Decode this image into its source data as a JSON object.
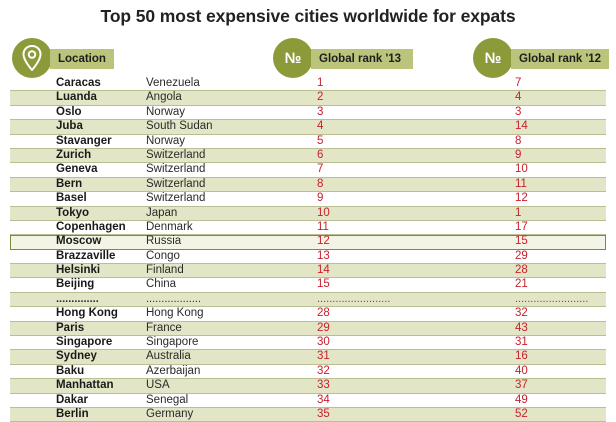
{
  "title": "Top 50 most expensive cities worldwide for expats",
  "header": {
    "location_label": "Location",
    "rank_symbol": "№",
    "rank13_label": "Global rank '13",
    "rank12_label": "Global rank '12"
  },
  "rows": [
    {
      "city": "Caracas",
      "country": "Venezuela",
      "rank13": "1",
      "rank12": "7"
    },
    {
      "city": "Luanda",
      "country": "Angola",
      "rank13": "2",
      "rank12": "4"
    },
    {
      "city": "Oslo",
      "country": "Norway",
      "rank13": "3",
      "rank12": "3"
    },
    {
      "city": "Juba",
      "country": "South Sudan",
      "rank13": "4",
      "rank12": "14"
    },
    {
      "city": "Stavanger",
      "country": "Norway",
      "rank13": "5",
      "rank12": "8"
    },
    {
      "city": "Zurich",
      "country": "Switzerland",
      "rank13": "6",
      "rank12": "9"
    },
    {
      "city": "Geneva",
      "country": "Switzerland",
      "rank13": "7",
      "rank12": "10"
    },
    {
      "city": "Bern",
      "country": "Switzerland",
      "rank13": "8",
      "rank12": "11"
    },
    {
      "city": "Basel",
      "country": "Switzerland",
      "rank13": "9",
      "rank12": "12"
    },
    {
      "city": "Tokyo",
      "country": "Japan",
      "rank13": "10",
      "rank12": "1"
    },
    {
      "city": "Copenhagen",
      "country": "Denmark",
      "rank13": "11",
      "rank12": "17"
    },
    {
      "city": "Moscow",
      "country": "Russia",
      "rank13": "12",
      "rank12": "15",
      "highlight": true
    },
    {
      "city": "Brazzaville",
      "country": "Congo",
      "rank13": "13",
      "rank12": "29"
    },
    {
      "city": "Helsinki",
      "country": "Finland",
      "rank13": "14",
      "rank12": "28"
    },
    {
      "city": "Beijing",
      "country": "China",
      "rank13": "15",
      "rank12": "21"
    },
    {
      "city": "..............",
      "country": "..................",
      "rank13": "........................",
      "rank12": "........................",
      "separator": true
    },
    {
      "city": "Hong Kong",
      "country": "Hong Kong",
      "rank13": "28",
      "rank12": "32"
    },
    {
      "city": "Paris",
      "country": "France",
      "rank13": "29",
      "rank12": "43"
    },
    {
      "city": "Singapore",
      "country": "Singapore",
      "rank13": "30",
      "rank12": "31"
    },
    {
      "city": "Sydney",
      "country": "Australia",
      "rank13": "31",
      "rank12": "16"
    },
    {
      "city": "Baku",
      "country": "Azerbaijan",
      "rank13": "32",
      "rank12": "40"
    },
    {
      "city": "Manhattan",
      "country": "USA",
      "rank13": "33",
      "rank12": "37"
    },
    {
      "city": "Dakar",
      "country": "Senegal",
      "rank13": "34",
      "rank12": "49"
    },
    {
      "city": "Berlin",
      "country": "Germany",
      "rank13": "35",
      "rank12": "52"
    }
  ],
  "colors": {
    "badge": "#8c9a3a",
    "header_band": "#bcc37a",
    "row_shade": "#e3e5c7",
    "rank_red": "#c8202d"
  },
  "icons": {
    "location": "map-pin-icon"
  }
}
